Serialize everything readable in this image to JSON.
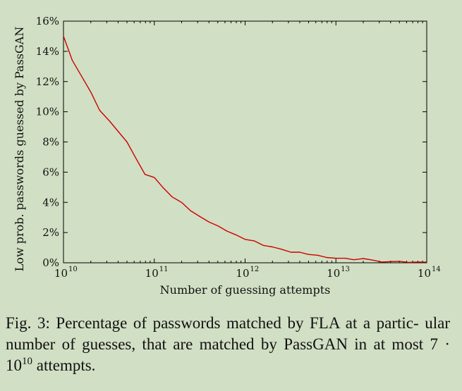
{
  "chart_data": {
    "type": "line",
    "xlabel": "Number of guessing attempts",
    "ylabel": "Low prob. passwords guessed by PassGAN",
    "x_scale": "log",
    "xlim": [
      10000000000.0,
      100000000000000.0
    ],
    "ylim": [
      0,
      16
    ],
    "x_ticks": [
      {
        "value": 10000000000.0,
        "base": "10",
        "exp": "10"
      },
      {
        "value": 100000000000.0,
        "base": "10",
        "exp": "11"
      },
      {
        "value": 1000000000000.0,
        "base": "10",
        "exp": "12"
      },
      {
        "value": 10000000000000.0,
        "base": "10",
        "exp": "13"
      },
      {
        "value": 100000000000000.0,
        "base": "10",
        "exp": "14"
      }
    ],
    "y_ticks": [
      {
        "value": 0,
        "label": "0%"
      },
      {
        "value": 2,
        "label": "2%"
      },
      {
        "value": 4,
        "label": "4%"
      },
      {
        "value": 6,
        "label": "6%"
      },
      {
        "value": 8,
        "label": "8%"
      },
      {
        "value": 10,
        "label": "10%"
      },
      {
        "value": 12,
        "label": "12%"
      },
      {
        "value": 14,
        "label": "14%"
      },
      {
        "value": 16,
        "label": "16%"
      }
    ],
    "grid": false,
    "line_color": "#cc0000",
    "series": [
      {
        "x": [
          10000000000.0,
          12500000000.0,
          16000000000.0,
          20000000000.0,
          25000000000.0,
          32000000000.0,
          40000000000.0,
          50000000000.0,
          63000000000.0,
          79000000000.0,
          100000000000.0,
          126000000000.0,
          158000000000.0,
          200000000000.0,
          250000000000.0,
          320000000000.0,
          400000000000.0,
          500000000000.0,
          630000000000.0,
          790000000000.0,
          1000000000000.0,
          1260000000000.0,
          1580000000000.0,
          2000000000000.0,
          2500000000000.0,
          3200000000000.0,
          4000000000000.0,
          5000000000000.0,
          6300000000000.0,
          7900000000000.0,
          10000000000000.0,
          12600000000000.0,
          15800000000000.0,
          20000000000000.0,
          25000000000000.0,
          32000000000000.0,
          40000000000000.0,
          50000000000000.0,
          63000000000000.0,
          79000000000000.0,
          100000000000000.0
        ],
        "y": [
          15.0,
          13.4,
          12.3,
          11.3,
          10.1,
          9.4,
          8.7,
          8.0,
          6.9,
          5.85,
          5.65,
          4.95,
          4.35,
          4.0,
          3.45,
          3.05,
          2.7,
          2.45,
          2.1,
          1.85,
          1.55,
          1.45,
          1.15,
          1.05,
          0.9,
          0.7,
          0.7,
          0.55,
          0.5,
          0.35,
          0.3,
          0.3,
          0.2,
          0.28,
          0.18,
          0.05,
          0.08,
          0.1,
          0.03,
          0.05,
          0.04
        ]
      }
    ]
  },
  "caption": {
    "prefix": "Fig. 3: Percentage of passwords matched by FLA at a partic- ular number of guesses, that are matched by PassGAN in at most 7 · 10",
    "exp": "10",
    "suffix": " attempts."
  }
}
